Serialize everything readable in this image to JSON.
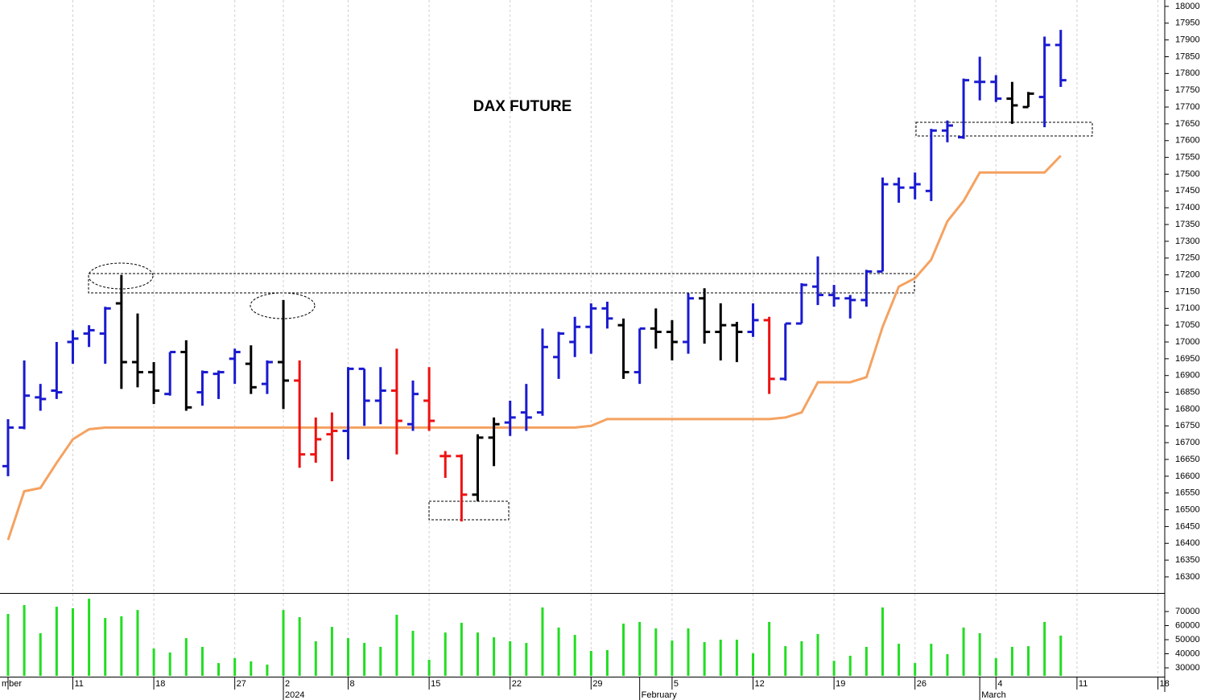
{
  "chart_data": {
    "type": "ohlc",
    "title": "DAX FUTURE",
    "categories": [
      "mber",
      null,
      null,
      null,
      "11",
      null,
      null,
      null,
      null,
      "18",
      null,
      null,
      null,
      null,
      "27",
      null,
      null,
      "2",
      null,
      null,
      null,
      "8",
      null,
      null,
      null,
      null,
      "15",
      null,
      null,
      null,
      null,
      "22",
      null,
      null,
      null,
      null,
      "29",
      null,
      null,
      null,
      null,
      "5",
      null,
      null,
      null,
      null,
      "12",
      null,
      null,
      null,
      null,
      "19",
      null,
      null,
      null,
      null,
      "26",
      null,
      null,
      null,
      null,
      "4",
      null,
      null,
      null,
      null,
      "11",
      null,
      null,
      null,
      null,
      "18"
    ],
    "month_labels": [
      null,
      null,
      null,
      null,
      null,
      null,
      null,
      null,
      null,
      null,
      null,
      null,
      null,
      null,
      null,
      null,
      null,
      "2024",
      null,
      null,
      null,
      null,
      null,
      null,
      null,
      null,
      null,
      null,
      null,
      null,
      null,
      null,
      null,
      null,
      null,
      null,
      null,
      null,
      null,
      "February",
      null,
      null,
      null,
      null,
      null,
      null,
      null,
      null,
      null,
      null,
      null,
      null,
      null,
      null,
      null,
      null,
      null,
      null,
      null,
      null,
      "March",
      null,
      null,
      null,
      null,
      null,
      null,
      null,
      null,
      null,
      null,
      null
    ],
    "price": {
      "open": [
        16630,
        16745,
        16835,
        16855,
        17000,
        17025,
        17025,
        17115,
        16940,
        16910,
        16845,
        16970,
        16850,
        16905,
        16950,
        16935,
        16875,
        16940,
        16885,
        16665,
        16725,
        16735,
        16920,
        16825,
        16855,
        16755,
        16825,
        16660,
        16660,
        16545,
        16715,
        16760,
        16790,
        16790,
        16955,
        17000,
        17045,
        17100,
        17050,
        16910,
        17040,
        17030,
        17000,
        17130,
        17030,
        17050,
        17030,
        17065,
        16890,
        17055,
        17165,
        17140,
        17130,
        17125,
        17210,
        17470,
        17460,
        17450,
        17630,
        17610,
        17775,
        17775,
        17725,
        17700,
        17730,
        17885,
        null,
        null,
        null,
        null,
        null,
        null
      ],
      "high": [
        16770,
        16945,
        16875,
        17000,
        17035,
        17050,
        17105,
        17200,
        17085,
        16940,
        16970,
        17005,
        16915,
        16915,
        16980,
        16990,
        16945,
        17125,
        16945,
        16775,
        16790,
        16925,
        16920,
        16925,
        16980,
        16885,
        16925,
        16675,
        16665,
        16725,
        16775,
        16825,
        16875,
        17040,
        17030,
        17075,
        17115,
        17120,
        17070,
        17040,
        17100,
        17065,
        17145,
        17160,
        17115,
        17060,
        17115,
        17075,
        17055,
        17175,
        17255,
        17170,
        17140,
        17215,
        17490,
        17490,
        17505,
        17635,
        17660,
        17785,
        17850,
        17795,
        17775,
        17745,
        17910,
        17930,
        null,
        null,
        null,
        null,
        null,
        null
      ],
      "low": [
        16600,
        16740,
        16795,
        16830,
        16935,
        16985,
        16935,
        16860,
        16865,
        16815,
        16840,
        16795,
        16810,
        16830,
        16875,
        16845,
        16845,
        16800,
        16625,
        16640,
        16585,
        16650,
        16750,
        16755,
        16665,
        16735,
        16735,
        16595,
        16465,
        16525,
        16630,
        16720,
        16735,
        16780,
        16890,
        16955,
        16965,
        17040,
        16890,
        16875,
        16980,
        16945,
        16965,
        16995,
        16945,
        16940,
        17015,
        16845,
        16885,
        17055,
        17110,
        17105,
        17070,
        17105,
        17210,
        17415,
        17425,
        17420,
        17595,
        17605,
        17720,
        17715,
        17650,
        17700,
        17640,
        17760,
        null,
        null,
        null,
        null,
        null,
        null
      ],
      "close": [
        16745,
        16840,
        16830,
        16850,
        17010,
        17035,
        17100,
        16940,
        16910,
        16855,
        16970,
        16805,
        16910,
        16910,
        16970,
        16865,
        16940,
        16885,
        16665,
        16710,
        16735,
        16920,
        16825,
        16855,
        16765,
        16845,
        16765,
        16660,
        16545,
        16715,
        16755,
        16775,
        16775,
        16985,
        17025,
        17045,
        17100,
        17070,
        16910,
        17040,
        17030,
        17000,
        17130,
        17030,
        17050,
        17030,
        17065,
        16890,
        17055,
        17170,
        17140,
        17130,
        17125,
        17210,
        17470,
        17460,
        17470,
        17630,
        17645,
        17780,
        17775,
        17725,
        17705,
        17740,
        17885,
        17780,
        null,
        null,
        null,
        null,
        null,
        null
      ],
      "colors": [
        "#1a1ad0",
        "#1a1ad0",
        "#1a1ad0",
        "#1a1ad0",
        "#1a1ad0",
        "#1a1ad0",
        "#1a1ad0",
        "#000000",
        "#000000",
        "#000000",
        "#1a1ad0",
        "#000000",
        "#1a1ad0",
        "#1a1ad0",
        "#1a1ad0",
        "#000000",
        "#1a1ad0",
        "#000000",
        "#ee1111",
        "#ee1111",
        "#ee1111",
        "#1a1ad0",
        "#1a1ad0",
        "#1a1ad0",
        "#ee1111",
        "#1a1ad0",
        "#ee1111",
        "#ee1111",
        "#ee1111",
        "#000000",
        "#000000",
        "#1a1ad0",
        "#1a1ad0",
        "#1a1ad0",
        "#1a1ad0",
        "#1a1ad0",
        "#1a1ad0",
        "#1a1ad0",
        "#000000",
        "#1a1ad0",
        "#000000",
        "#000000",
        "#1a1ad0",
        "#000000",
        "#000000",
        "#000000",
        "#1a1ad0",
        "#ee1111",
        "#1a1ad0",
        "#1a1ad0",
        "#1a1ad0",
        "#1a1ad0",
        "#1a1ad0",
        "#1a1ad0",
        "#1a1ad0",
        "#1a1ad0",
        "#1a1ad0",
        "#1a1ad0",
        "#1a1ad0",
        "#1a1ad0",
        "#1a1ad0",
        "#1a1ad0",
        "#000000",
        "#000000",
        "#1a1ad0",
        "#1a1ad0",
        null,
        null,
        null,
        null,
        null,
        null
      ]
    },
    "moving_average": {
      "color": "#f5a261",
      "values": [
        16410,
        16555,
        16565,
        16640,
        16710,
        16740,
        16745,
        16745,
        16745,
        16745,
        16745,
        16745,
        16745,
        16745,
        16745,
        16745,
        16745,
        16745,
        16745,
        16745,
        16745,
        16745,
        16745,
        16745,
        16745,
        16745,
        16745,
        16745,
        16745,
        16745,
        16745,
        16745,
        16745,
        16745,
        16745,
        16745,
        16750,
        16770,
        16770,
        16770,
        16770,
        16770,
        16770,
        16770,
        16770,
        16770,
        16770,
        16770,
        16775,
        16790,
        16880,
        16880,
        16880,
        16895,
        17045,
        17165,
        17190,
        17245,
        17360,
        17420,
        17505,
        17505,
        17505,
        17505,
        17505,
        17555,
        null,
        null,
        null,
        null,
        null,
        null
      ]
    },
    "ylim": [
      16252,
      18019
    ],
    "yticks": [
      16300,
      16350,
      16400,
      16450,
      16500,
      16550,
      16600,
      16650,
      16700,
      16750,
      16800,
      16850,
      16900,
      16950,
      17000,
      17050,
      17100,
      17150,
      17200,
      17250,
      17300,
      17350,
      17400,
      17450,
      17500,
      17550,
      17600,
      17650,
      17700,
      17750,
      17800,
      17850,
      17900,
      17950,
      18000
    ],
    "volume": {
      "color": "#22dd22",
      "values": [
        68300,
        74600,
        54600,
        73400,
        72300,
        79100,
        65400,
        66600,
        71100,
        43700,
        40900,
        51100,
        44900,
        33400,
        36900,
        34600,
        32300,
        71100,
        66000,
        48900,
        59100,
        51100,
        47700,
        44900,
        67700,
        56300,
        35700,
        55100,
        62000,
        55100,
        51700,
        48900,
        47700,
        72900,
        58600,
        53400,
        42000,
        42600,
        61400,
        62600,
        58000,
        49400,
        58000,
        48300,
        50000,
        50000,
        40300,
        62600,
        45400,
        48900,
        54000,
        35000,
        38600,
        44900,
        72900,
        47100,
        33400,
        47100,
        39700,
        58600,
        54600,
        36900,
        44900,
        45400,
        62600,
        52900,
        null,
        null,
        null,
        null,
        null,
        null
      ],
      "ylim": [
        24300,
        82600
      ],
      "yticks": [
        30000,
        40000,
        50000,
        60000,
        70000
      ]
    },
    "grid": true
  }
}
